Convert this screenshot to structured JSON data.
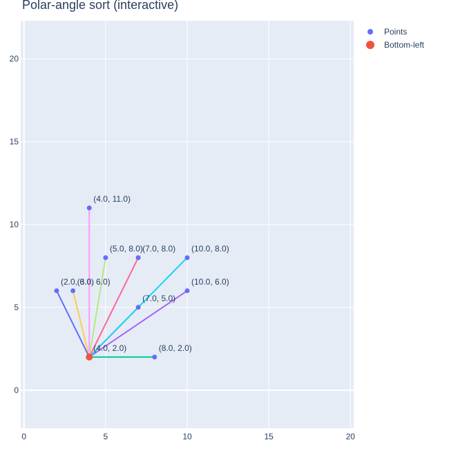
{
  "chart_data": {
    "type": "scatter",
    "title": "Polar-angle sort (interactive)",
    "xlabel": "",
    "ylabel": "",
    "xlim": [
      -0.2,
      20.2
    ],
    "ylim": [
      -2.3,
      22.3
    ],
    "x_ticks": [
      0,
      5,
      10,
      15,
      20
    ],
    "y_ticks": [
      0,
      5,
      10,
      15,
      20
    ],
    "grid": true,
    "legend_position": "top-right",
    "colors": {
      "background": "#e5ecf6",
      "grid": "#ffffff",
      "points": "#636efa",
      "bottom_left": "#ef553b"
    },
    "series": [
      {
        "name": "Points",
        "points": [
          {
            "x": 8.0,
            "y": 2.0,
            "label": "(8.0, 2.0)"
          },
          {
            "x": 10.0,
            "y": 6.0,
            "label": "(10.0, 6.0)"
          },
          {
            "x": 7.0,
            "y": 5.0,
            "label": "(7.0, 5.0)"
          },
          {
            "x": 10.0,
            "y": 8.0,
            "label": "(10.0, 8.0)"
          },
          {
            "x": 7.0,
            "y": 8.0,
            "label": "(7.0, 8.0)"
          },
          {
            "x": 5.0,
            "y": 8.0,
            "label": "(5.0, 8.0)"
          },
          {
            "x": 4.0,
            "y": 11.0,
            "label": "(4.0, 11.0)"
          },
          {
            "x": 3.0,
            "y": 6.0,
            "label": "(3.0, 6.0)"
          },
          {
            "x": 2.0,
            "y": 6.0,
            "label": "(2.0, 6.0)"
          }
        ]
      },
      {
        "name": "Bottom-left",
        "points": [
          {
            "x": 4.0,
            "y": 2.0,
            "label": "(4.0, 2.0)"
          }
        ]
      }
    ],
    "segments": {
      "from": [
        4.0,
        2.0
      ],
      "to": [
        [
          8.0,
          2.0
        ],
        [
          10.0,
          6.0
        ],
        [
          7.0,
          5.0
        ],
        [
          10.0,
          8.0
        ],
        [
          7.0,
          8.0
        ],
        [
          5.0,
          8.0
        ],
        [
          4.0,
          11.0
        ],
        [
          3.0,
          6.0
        ],
        [
          2.0,
          6.0
        ]
      ],
      "colors": [
        "#00cc96",
        "#ab63fa",
        "#ab63fa",
        "#19d3f3",
        "#ff6692",
        "#b6e880",
        "#ff97ff",
        "#fecb52",
        "#636efa"
      ]
    }
  }
}
